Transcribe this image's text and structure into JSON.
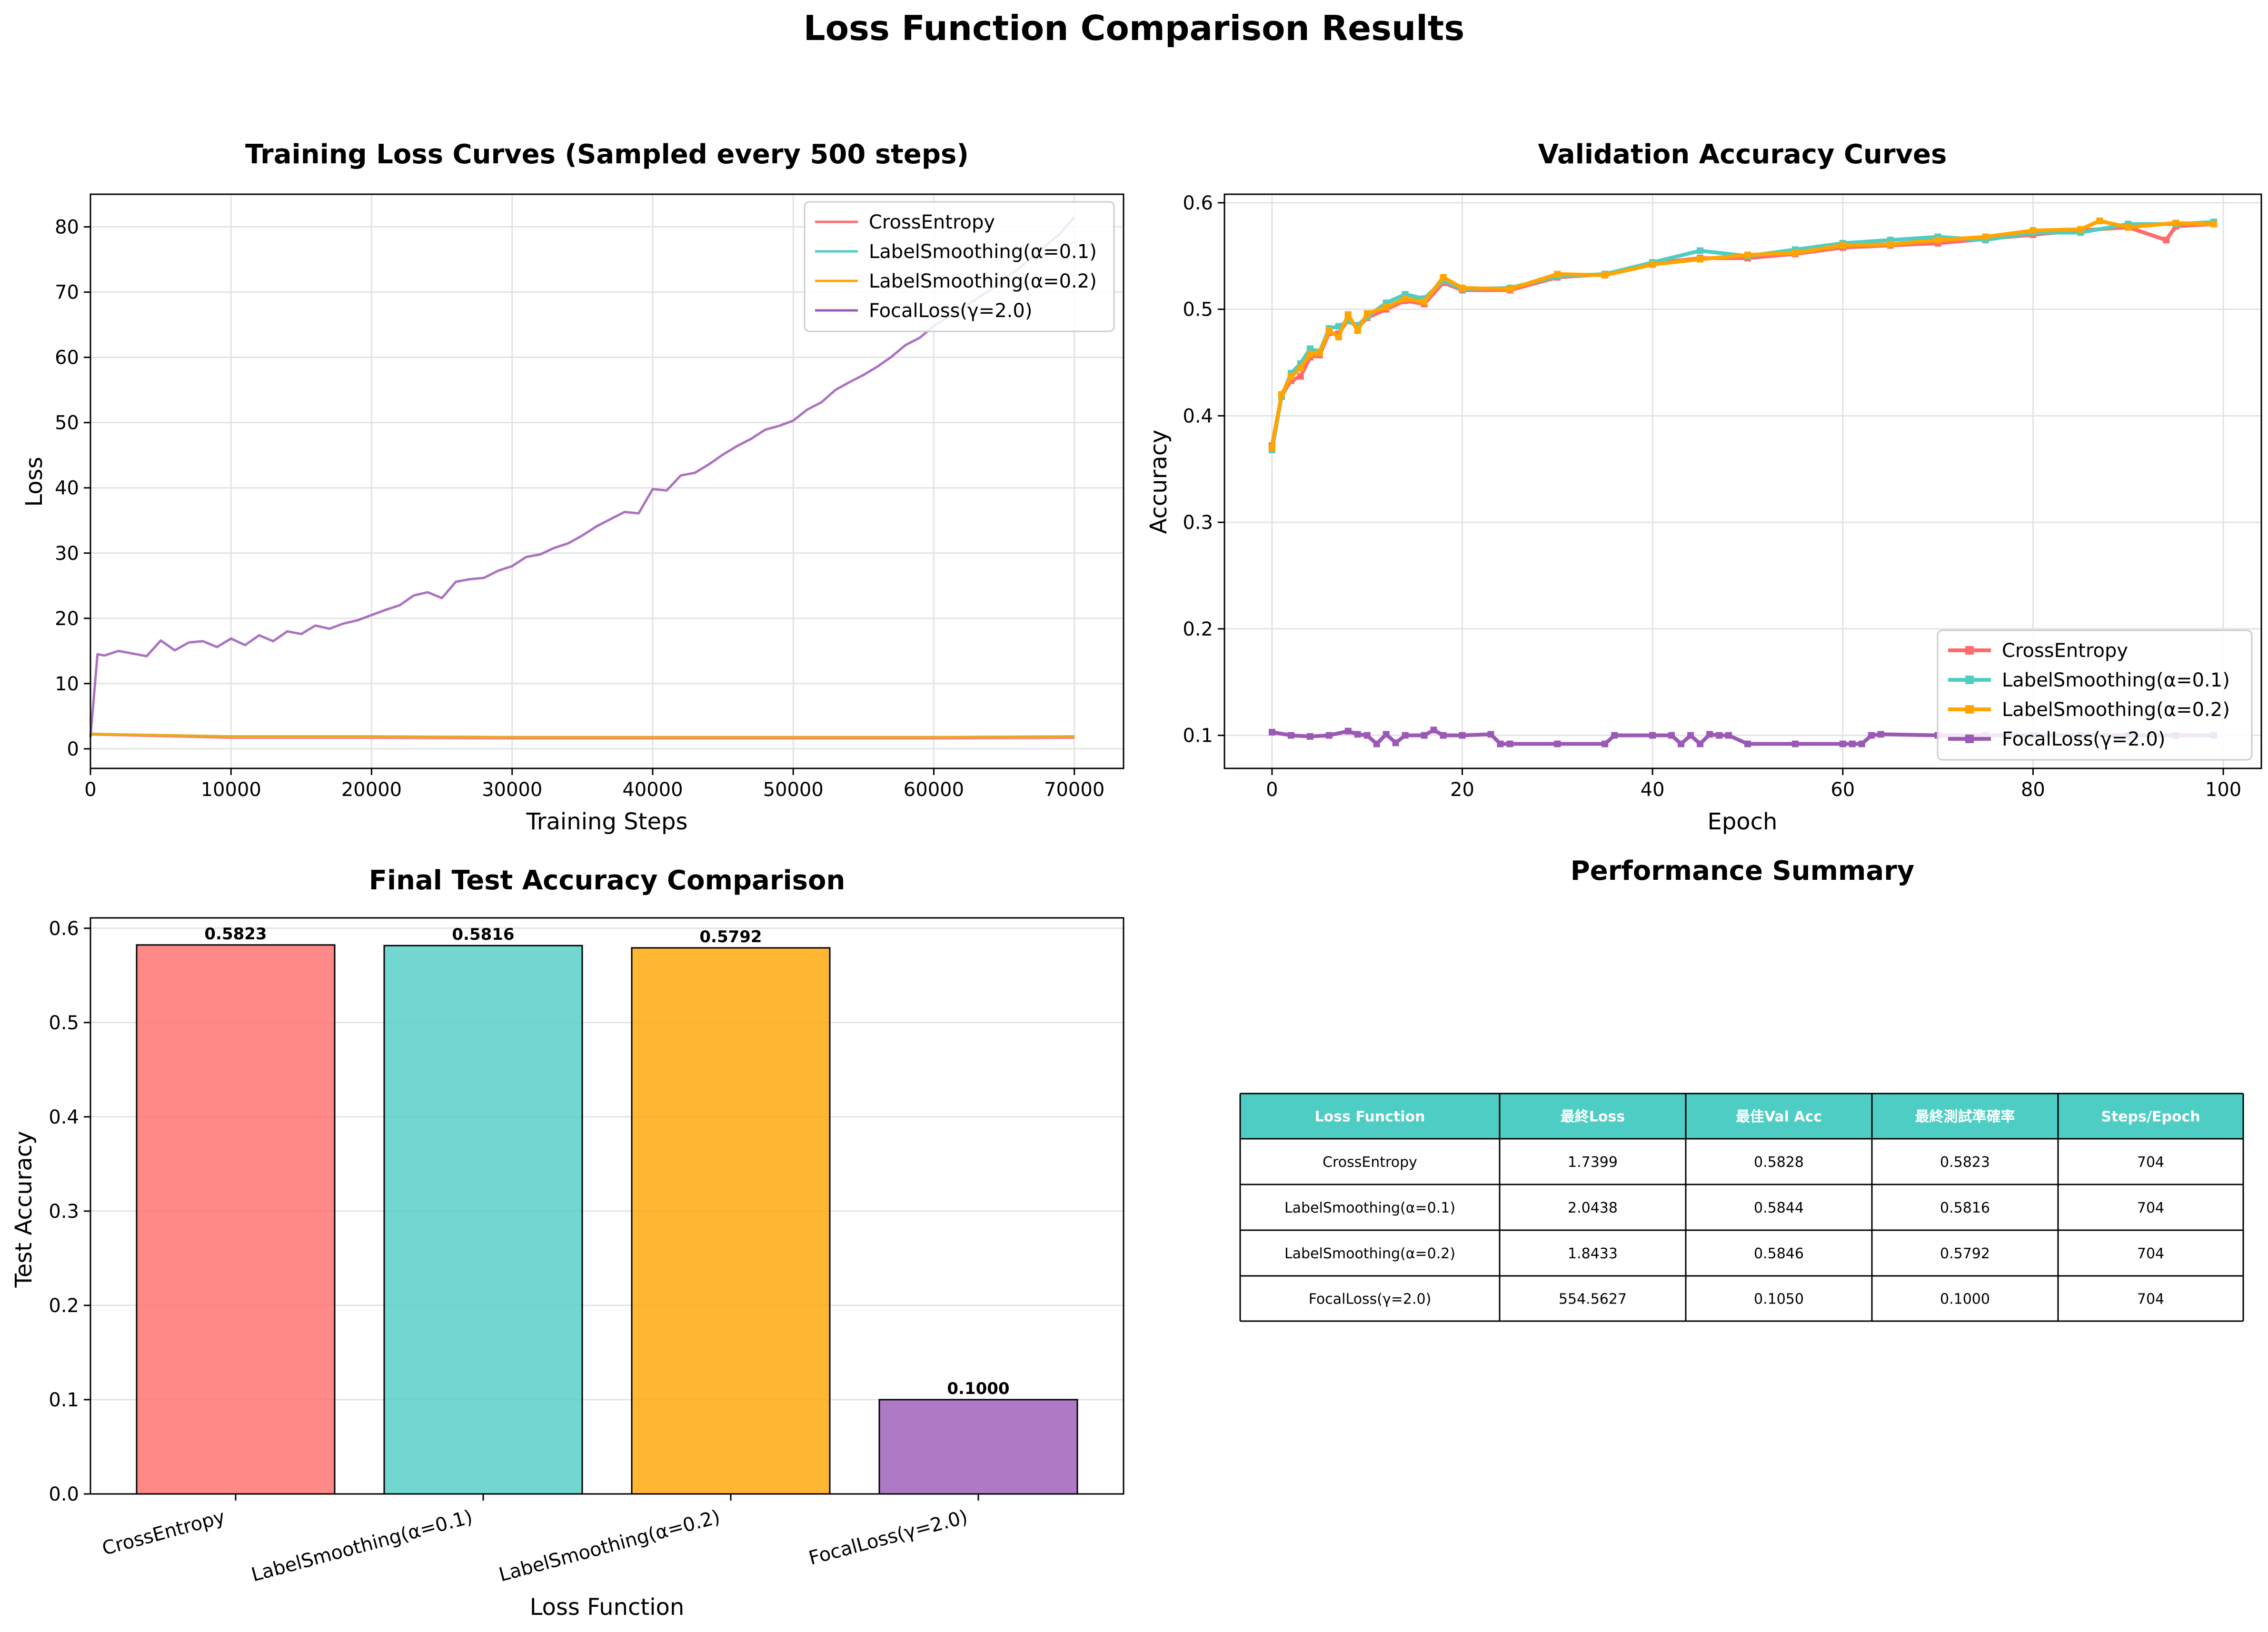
{
  "figure": {
    "title": "Loss Function Comparison Results"
  },
  "colors": {
    "CrossEntropy": "#ff6b6b",
    "LabelSmoothing(α=0.1)": "#4ecdc4",
    "LabelSmoothing(α=0.2)": "#ffa500",
    "FocalLoss(γ=2.0)": "#9b59b6",
    "table_header": "#4ecdc4"
  },
  "panels": {
    "loss": {
      "title": "Training Loss Curves (Sampled every 500 steps)",
      "xlabel": "Training Steps",
      "ylabel": "Loss"
    },
    "val": {
      "title": "Validation Accuracy Curves",
      "xlabel": "Epoch",
      "ylabel": "Accuracy"
    },
    "bar": {
      "title": "Final Test Accuracy Comparison",
      "xlabel": "Loss Function",
      "ylabel": "Test Accuracy"
    },
    "summary": {
      "title": "Performance Summary"
    }
  },
  "chart_data": [
    {
      "type": "line",
      "title": "Training Loss Curves (Sampled every 500 steps)",
      "xlabel": "Training Steps",
      "ylabel": "Loss",
      "xlim": [
        0,
        73500
      ],
      "ylim": [
        -3,
        85
      ],
      "xticks": [
        0,
        10000,
        20000,
        30000,
        40000,
        50000,
        60000,
        70000
      ],
      "yticks": [
        0,
        10,
        20,
        30,
        40,
        50,
        60,
        70,
        80
      ],
      "grid": true,
      "legend": "top-right",
      "series": [
        {
          "name": "CrossEntropy",
          "x": [
            0,
            10000,
            20000,
            30000,
            40000,
            50000,
            60000,
            70000
          ],
          "y": [
            2.2,
            1.7,
            1.7,
            1.6,
            1.6,
            1.6,
            1.6,
            1.7
          ]
        },
        {
          "name": "LabelSmoothing(α=0.1)",
          "x": [
            0,
            10000,
            20000,
            30000,
            40000,
            50000,
            60000,
            70000
          ],
          "y": [
            2.3,
            1.9,
            1.9,
            1.8,
            1.8,
            1.8,
            1.8,
            1.9
          ]
        },
        {
          "name": "LabelSmoothing(α=0.2)",
          "x": [
            0,
            10000,
            20000,
            30000,
            40000,
            50000,
            60000,
            70000
          ],
          "y": [
            2.3,
            1.9,
            1.9,
            1.8,
            1.8,
            1.8,
            1.8,
            1.9
          ]
        },
        {
          "name": "FocalLoss(γ=2.0)",
          "x": [
            0,
            500,
            1000,
            2000,
            3000,
            4000,
            5000,
            6000,
            7000,
            8000,
            9000,
            10000,
            11000,
            12000,
            13000,
            14000,
            15000,
            16000,
            17000,
            18000,
            19000,
            20000,
            21000,
            22000,
            23000,
            24000,
            25000,
            26000,
            27000,
            28000,
            29000,
            30000,
            31000,
            32000,
            33000,
            34000,
            35000,
            36000,
            37000,
            38000,
            39000,
            40000,
            41000,
            42000,
            43000,
            44000,
            45000,
            46000,
            47000,
            48000,
            49000,
            50000,
            51000,
            52000,
            53000,
            54000,
            55000,
            56000,
            57000,
            58000,
            59000,
            60000,
            61000,
            62000,
            63000,
            64000,
            65000,
            66000,
            67000,
            68000,
            69000,
            70000
          ],
          "y": [
            1.8,
            14.5,
            14.3,
            15.0,
            14.6,
            14.2,
            16.6,
            15.1,
            16.3,
            16.5,
            15.6,
            16.9,
            15.9,
            17.4,
            16.5,
            18.0,
            17.6,
            18.9,
            18.4,
            19.2,
            19.7,
            20.5,
            21.3,
            22.0,
            23.5,
            24.0,
            23.1,
            25.6,
            26.0,
            26.2,
            27.3,
            28.0,
            29.4,
            29.8,
            30.8,
            31.5,
            32.7,
            34.1,
            35.2,
            36.3,
            36.1,
            39.8,
            39.6,
            41.9,
            42.3,
            43.6,
            45.1,
            46.4,
            47.5,
            48.9,
            49.5,
            50.3,
            52.0,
            53.1,
            55.0,
            56.2,
            57.3,
            58.6,
            60.1,
            61.9,
            63.0,
            64.8,
            66.2,
            67.5,
            68.9,
            70.3,
            72.0,
            73.5,
            75.4,
            77.2,
            79.0,
            81.5
          ]
        }
      ]
    },
    {
      "type": "line",
      "title": "Validation Accuracy Curves",
      "xlabel": "Epoch",
      "ylabel": "Accuracy",
      "xlim": [
        -5,
        104
      ],
      "ylim": [
        0.069,
        0.608
      ],
      "xticks": [
        0,
        20,
        40,
        60,
        80,
        100
      ],
      "yticks": [
        0.1,
        0.2,
        0.3,
        0.4,
        0.5,
        0.6
      ],
      "grid": true,
      "legend": "lower-right",
      "series": [
        {
          "name": "CrossEntropy",
          "x": [
            0,
            1,
            2,
            3,
            4,
            5,
            6,
            7,
            8,
            9,
            10,
            12,
            14,
            16,
            18,
            20,
            25,
            30,
            35,
            40,
            45,
            50,
            55,
            60,
            65,
            70,
            75,
            80,
            85,
            90,
            94,
            95,
            99
          ],
          "y": [
            0.372,
            0.419,
            0.433,
            0.437,
            0.455,
            0.457,
            0.478,
            0.477,
            0.49,
            0.483,
            0.492,
            0.5,
            0.508,
            0.505,
            0.525,
            0.518,
            0.518,
            0.53,
            0.533,
            0.543,
            0.548,
            0.548,
            0.552,
            0.558,
            0.56,
            0.562,
            0.566,
            0.57,
            0.574,
            0.577,
            0.565,
            0.578,
            0.58
          ]
        },
        {
          "name": "LabelSmoothing(α=0.1)",
          "x": [
            0,
            1,
            2,
            3,
            4,
            5,
            6,
            7,
            8,
            9,
            10,
            12,
            14,
            16,
            18,
            20,
            25,
            30,
            35,
            40,
            45,
            50,
            55,
            60,
            65,
            70,
            75,
            80,
            85,
            90,
            95,
            99
          ],
          "y": [
            0.368,
            0.418,
            0.44,
            0.449,
            0.463,
            0.46,
            0.482,
            0.484,
            0.489,
            0.485,
            0.493,
            0.506,
            0.514,
            0.51,
            0.527,
            0.519,
            0.52,
            0.531,
            0.533,
            0.544,
            0.555,
            0.55,
            0.556,
            0.562,
            0.565,
            0.568,
            0.565,
            0.572,
            0.572,
            0.58,
            0.58,
            0.582
          ]
        },
        {
          "name": "LabelSmoothing(α=0.2)",
          "x": [
            0,
            1,
            2,
            3,
            4,
            5,
            6,
            7,
            8,
            9,
            10,
            12,
            14,
            16,
            18,
            20,
            25,
            30,
            35,
            40,
            45,
            50,
            55,
            60,
            65,
            70,
            75,
            80,
            85,
            87,
            90,
            95,
            99
          ],
          "y": [
            0.37,
            0.42,
            0.437,
            0.445,
            0.458,
            0.459,
            0.48,
            0.474,
            0.495,
            0.48,
            0.496,
            0.502,
            0.51,
            0.507,
            0.53,
            0.52,
            0.519,
            0.533,
            0.532,
            0.542,
            0.547,
            0.551,
            0.553,
            0.56,
            0.561,
            0.565,
            0.568,
            0.574,
            0.575,
            0.583,
            0.577,
            0.581,
            0.58
          ]
        },
        {
          "name": "FocalLoss(γ=2.0)",
          "x": [
            0,
            2,
            4,
            6,
            8,
            9,
            10,
            11,
            12,
            13,
            14,
            16,
            17,
            18,
            20,
            23,
            24,
            25,
            30,
            35,
            36,
            40,
            42,
            43,
            44,
            45,
            46,
            47,
            48,
            50,
            55,
            60,
            61,
            62,
            63,
            64,
            70,
            75,
            80,
            85,
            90,
            95,
            99
          ],
          "y": [
            0.103,
            0.1,
            0.099,
            0.1,
            0.104,
            0.101,
            0.1,
            0.092,
            0.101,
            0.093,
            0.1,
            0.1,
            0.105,
            0.1,
            0.1,
            0.101,
            0.092,
            0.092,
            0.092,
            0.092,
            0.1,
            0.1,
            0.1,
            0.092,
            0.1,
            0.092,
            0.101,
            0.1,
            0.1,
            0.092,
            0.092,
            0.092,
            0.092,
            0.092,
            0.1,
            0.101,
            0.1,
            0.1,
            0.1,
            0.1,
            0.1,
            0.1,
            0.1
          ]
        }
      ]
    },
    {
      "type": "bar",
      "title": "Final Test Accuracy Comparison",
      "xlabel": "Loss Function",
      "ylabel": "Test Accuracy",
      "ylim": [
        0,
        0.611
      ],
      "yticks": [
        0.0,
        0.1,
        0.2,
        0.3,
        0.4,
        0.5,
        0.6
      ],
      "grid": true,
      "categories": [
        "CrossEntropy",
        "LabelSmoothing(α=0.1)",
        "LabelSmoothing(α=0.2)",
        "FocalLoss(γ=2.0)"
      ],
      "values": [
        0.5823,
        0.5816,
        0.5792,
        0.1
      ],
      "value_labels": [
        "0.5823",
        "0.5816",
        "0.5792",
        "0.1000"
      ]
    },
    {
      "type": "table",
      "title": "Performance Summary",
      "columns": [
        "Loss Function",
        "最終Loss",
        "最佳Val Acc",
        "最終測試準確率",
        "Steps/Epoch"
      ],
      "rows": [
        [
          "CrossEntropy",
          "1.7399",
          "0.5828",
          "0.5823",
          "704"
        ],
        [
          "LabelSmoothing(α=0.1)",
          "2.0438",
          "0.5844",
          "0.5816",
          "704"
        ],
        [
          "LabelSmoothing(α=0.2)",
          "1.8433",
          "0.5846",
          "0.5792",
          "704"
        ],
        [
          "FocalLoss(γ=2.0)",
          "554.5627",
          "0.1050",
          "0.1000",
          "704"
        ]
      ]
    }
  ]
}
